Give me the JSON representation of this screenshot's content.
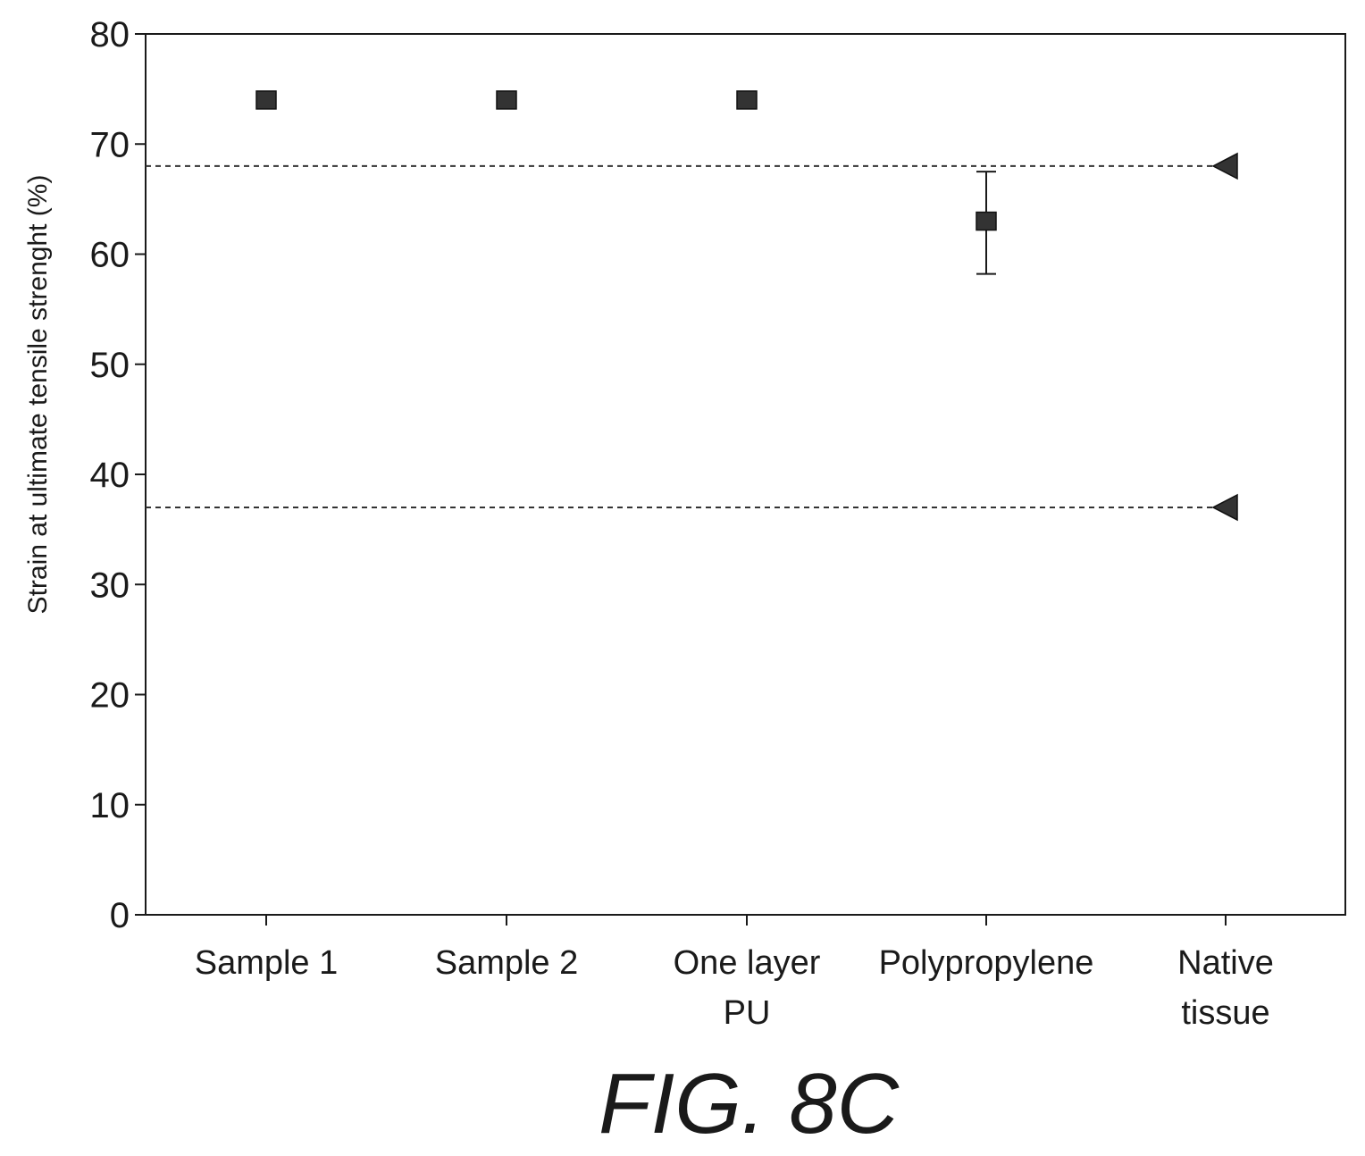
{
  "chart_data": {
    "type": "scatter",
    "xlabel": "",
    "ylabel": "Strain at ultimate tensile strenght (%)",
    "ylim": [
      0,
      80
    ],
    "yticks": [
      "0",
      "10",
      "20",
      "30",
      "40",
      "50",
      "60",
      "70",
      "80"
    ],
    "categories": [
      [
        "Sample 1"
      ],
      [
        "Sample 2"
      ],
      [
        "One layer",
        "PU"
      ],
      [
        "Polypropylene"
      ],
      [
        "Native",
        "tissue"
      ]
    ],
    "points": [
      {
        "category": 0,
        "value": 74,
        "marker": "square"
      },
      {
        "category": 1,
        "value": 74,
        "marker": "square"
      },
      {
        "category": 2,
        "value": 74,
        "marker": "square"
      },
      {
        "category": 3,
        "value": 63,
        "marker": "square",
        "error_low": 58.2,
        "error_high": 67.5
      },
      {
        "category": 4,
        "value": 68,
        "marker": "triangle-left"
      },
      {
        "category": 4,
        "value": 37,
        "marker": "triangle-left"
      }
    ],
    "reference_lines": [
      {
        "y": 68,
        "style": "dashed"
      },
      {
        "y": 37,
        "style": "dashed"
      }
    ],
    "grid": false,
    "colors": {
      "marker": "#333333",
      "axis": "#1a1a1a",
      "dashed": "#333333"
    }
  },
  "caption": "FIG. 8C"
}
